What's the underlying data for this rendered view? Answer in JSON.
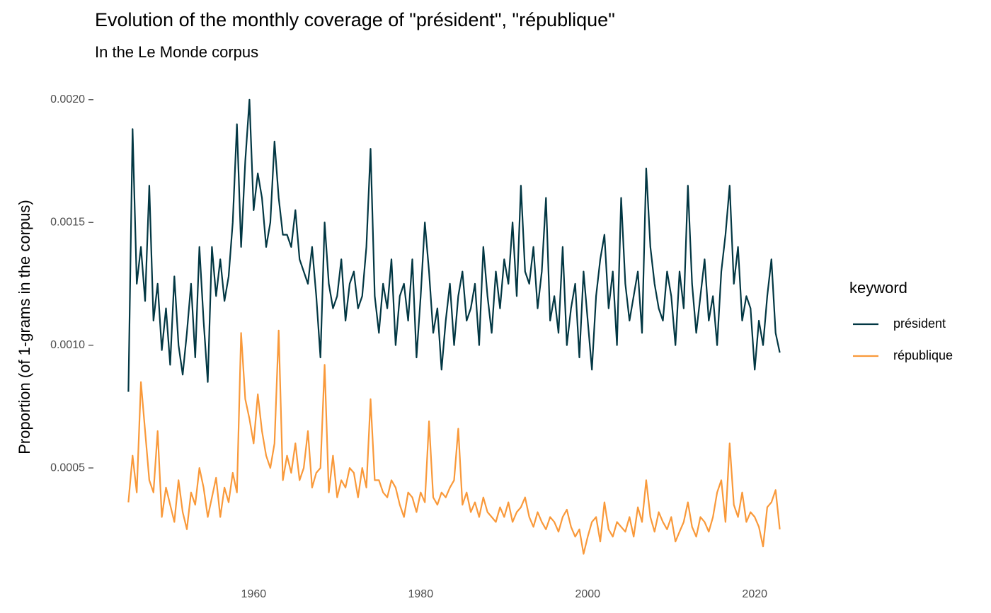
{
  "chart_data": {
    "type": "line",
    "title": "Evolution of the monthly coverage of \"président\", \"république\"",
    "subtitle": "In the Le Monde corpus",
    "y_label": "Proportion (of 1-grams in the corpus)",
    "legend_title": "keyword",
    "legend_position": "right",
    "grid": false,
    "xlim": [
      1940.9,
      2027.1
    ],
    "xticks": [
      1960,
      1980,
      2000,
      2020
    ],
    "ylim": [
      8.5e-05,
      0.00206
    ],
    "yticks": [
      0.0005,
      {
        "value": 0.001,
        "label": "0.0010"
      },
      0.0015,
      {
        "value": 0.002,
        "label": "0.0020"
      }
    ],
    "x": [
      1945,
      1945.5,
      1946,
      1946.5,
      1947,
      1947.5,
      1948,
      1948.5,
      1949,
      1949.5,
      1950,
      1950.5,
      1951,
      1951.5,
      1952,
      1952.5,
      1953,
      1953.5,
      1954,
      1954.5,
      1955,
      1955.5,
      1956,
      1956.5,
      1957,
      1957.5,
      1958,
      1958.5,
      1959,
      1959.5,
      1960,
      1960.5,
      1961,
      1961.5,
      1962,
      1962.5,
      1963,
      1963.5,
      1964,
      1964.5,
      1965,
      1965.5,
      1966,
      1966.5,
      1967,
      1967.5,
      1968,
      1968.5,
      1969,
      1969.5,
      1970,
      1970.5,
      1971,
      1971.5,
      1972,
      1972.5,
      1973,
      1973.5,
      1974,
      1974.5,
      1975,
      1975.5,
      1976,
      1976.5,
      1977,
      1977.5,
      1978,
      1978.5,
      1979,
      1979.5,
      1980,
      1980.5,
      1981,
      1981.5,
      1982,
      1982.5,
      1983,
      1983.5,
      1984,
      1984.5,
      1985,
      1985.5,
      1986,
      1986.5,
      1987,
      1987.5,
      1988,
      1988.5,
      1989,
      1989.5,
      1990,
      1990.5,
      1991,
      1991.5,
      1992,
      1992.5,
      1993,
      1993.5,
      1994,
      1994.5,
      1995,
      1995.5,
      1996,
      1996.5,
      1997,
      1997.5,
      1998,
      1998.5,
      1999,
      1999.5,
      2000,
      2000.5,
      2001,
      2001.5,
      2002,
      2002.5,
      2003,
      2003.5,
      2004,
      2004.5,
      2005,
      2005.5,
      2006,
      2006.5,
      2007,
      2007.5,
      2008,
      2008.5,
      2009,
      2009.5,
      2010,
      2010.5,
      2011,
      2011.5,
      2012,
      2012.5,
      2013,
      2013.5,
      2014,
      2014.5,
      2015,
      2015.5,
      2016,
      2016.5,
      2017,
      2017.5,
      2018,
      2018.5,
      2019,
      2019.5,
      2020,
      2020.5,
      2021,
      2021.5,
      2022,
      2022.5,
      2023
    ],
    "series": [
      {
        "name": "président",
        "color": "#023743",
        "values": [
          0.00081,
          0.00188,
          0.00125,
          0.0014,
          0.00118,
          0.00165,
          0.0011,
          0.00125,
          0.00098,
          0.00115,
          0.00092,
          0.00128,
          0.001,
          0.00088,
          0.00105,
          0.00125,
          0.00095,
          0.0014,
          0.0011,
          0.00085,
          0.0014,
          0.0012,
          0.00135,
          0.00118,
          0.00128,
          0.0015,
          0.0019,
          0.0014,
          0.00175,
          0.002,
          0.00155,
          0.0017,
          0.0016,
          0.0014,
          0.0015,
          0.00183,
          0.0016,
          0.00145,
          0.00145,
          0.0014,
          0.00155,
          0.00135,
          0.0013,
          0.00125,
          0.0014,
          0.0012,
          0.00095,
          0.0015,
          0.00125,
          0.00115,
          0.0012,
          0.00135,
          0.0011,
          0.00125,
          0.0013,
          0.00115,
          0.0012,
          0.0014,
          0.0018,
          0.0012,
          0.00105,
          0.00125,
          0.00115,
          0.00135,
          0.001,
          0.0012,
          0.00125,
          0.0011,
          0.00135,
          0.00095,
          0.0012,
          0.0015,
          0.0013,
          0.00105,
          0.00115,
          0.0009,
          0.0011,
          0.00125,
          0.001,
          0.0012,
          0.0013,
          0.0011,
          0.00115,
          0.00125,
          0.001,
          0.0014,
          0.0012,
          0.00105,
          0.0013,
          0.00115,
          0.00135,
          0.00125,
          0.0015,
          0.0012,
          0.00165,
          0.0013,
          0.00125,
          0.0014,
          0.00115,
          0.0013,
          0.0016,
          0.0011,
          0.0012,
          0.00105,
          0.0014,
          0.001,
          0.00115,
          0.00125,
          0.00095,
          0.0013,
          0.0011,
          0.0009,
          0.0012,
          0.00135,
          0.00145,
          0.00115,
          0.0013,
          0.001,
          0.0016,
          0.00125,
          0.0011,
          0.0012,
          0.0013,
          0.00105,
          0.00172,
          0.0014,
          0.00125,
          0.00115,
          0.0011,
          0.0013,
          0.0012,
          0.001,
          0.0013,
          0.00115,
          0.00165,
          0.00125,
          0.00105,
          0.0012,
          0.00135,
          0.0011,
          0.0012,
          0.001,
          0.0013,
          0.00145,
          0.00165,
          0.00125,
          0.0014,
          0.0011,
          0.0012,
          0.00115,
          0.0009,
          0.0011,
          0.001,
          0.0012,
          0.00135,
          0.00105,
          0.00097
        ]
      },
      {
        "name": "république",
        "color": "#f9993a",
        "values": [
          0.00036,
          0.00055,
          0.0004,
          0.00085,
          0.00065,
          0.00045,
          0.0004,
          0.00065,
          0.0003,
          0.00042,
          0.00035,
          0.00028,
          0.00045,
          0.00032,
          0.00025,
          0.0004,
          0.00035,
          0.0005,
          0.00042,
          0.0003,
          0.00038,
          0.00046,
          0.0003,
          0.00042,
          0.00036,
          0.00048,
          0.0004,
          0.00105,
          0.00078,
          0.0007,
          0.0006,
          0.0008,
          0.00065,
          0.00055,
          0.0005,
          0.0006,
          0.00106,
          0.00045,
          0.00055,
          0.00048,
          0.0006,
          0.00045,
          0.0005,
          0.00065,
          0.00042,
          0.00048,
          0.0005,
          0.00092,
          0.0004,
          0.00055,
          0.00038,
          0.00045,
          0.00042,
          0.0005,
          0.00048,
          0.00038,
          0.0005,
          0.00042,
          0.00078,
          0.00045,
          0.00045,
          0.0004,
          0.00038,
          0.00045,
          0.00042,
          0.00035,
          0.0003,
          0.0004,
          0.00038,
          0.00032,
          0.0004,
          0.00036,
          0.00069,
          0.00038,
          0.00035,
          0.0004,
          0.00038,
          0.00042,
          0.00045,
          0.00066,
          0.00035,
          0.0004,
          0.00032,
          0.00036,
          0.0003,
          0.00038,
          0.00032,
          0.0003,
          0.00028,
          0.00034,
          0.0003,
          0.00036,
          0.00028,
          0.00032,
          0.00034,
          0.00038,
          0.0003,
          0.00026,
          0.00032,
          0.00028,
          0.00025,
          0.0003,
          0.00028,
          0.00024,
          0.0003,
          0.00033,
          0.00026,
          0.00022,
          0.00025,
          0.00015,
          0.00022,
          0.00028,
          0.0003,
          0.0002,
          0.00036,
          0.00025,
          0.00022,
          0.00028,
          0.00026,
          0.00024,
          0.0003,
          0.00022,
          0.00034,
          0.00028,
          0.00045,
          0.0003,
          0.00024,
          0.00032,
          0.00028,
          0.00025,
          0.0003,
          0.0002,
          0.00024,
          0.00028,
          0.00036,
          0.00026,
          0.00022,
          0.0003,
          0.00028,
          0.00024,
          0.0003,
          0.0004,
          0.00045,
          0.00028,
          0.0006,
          0.00035,
          0.0003,
          0.0004,
          0.00028,
          0.00032,
          0.0003,
          0.00026,
          0.00018,
          0.00034,
          0.00036,
          0.00041,
          0.00025
        ]
      }
    ]
  }
}
